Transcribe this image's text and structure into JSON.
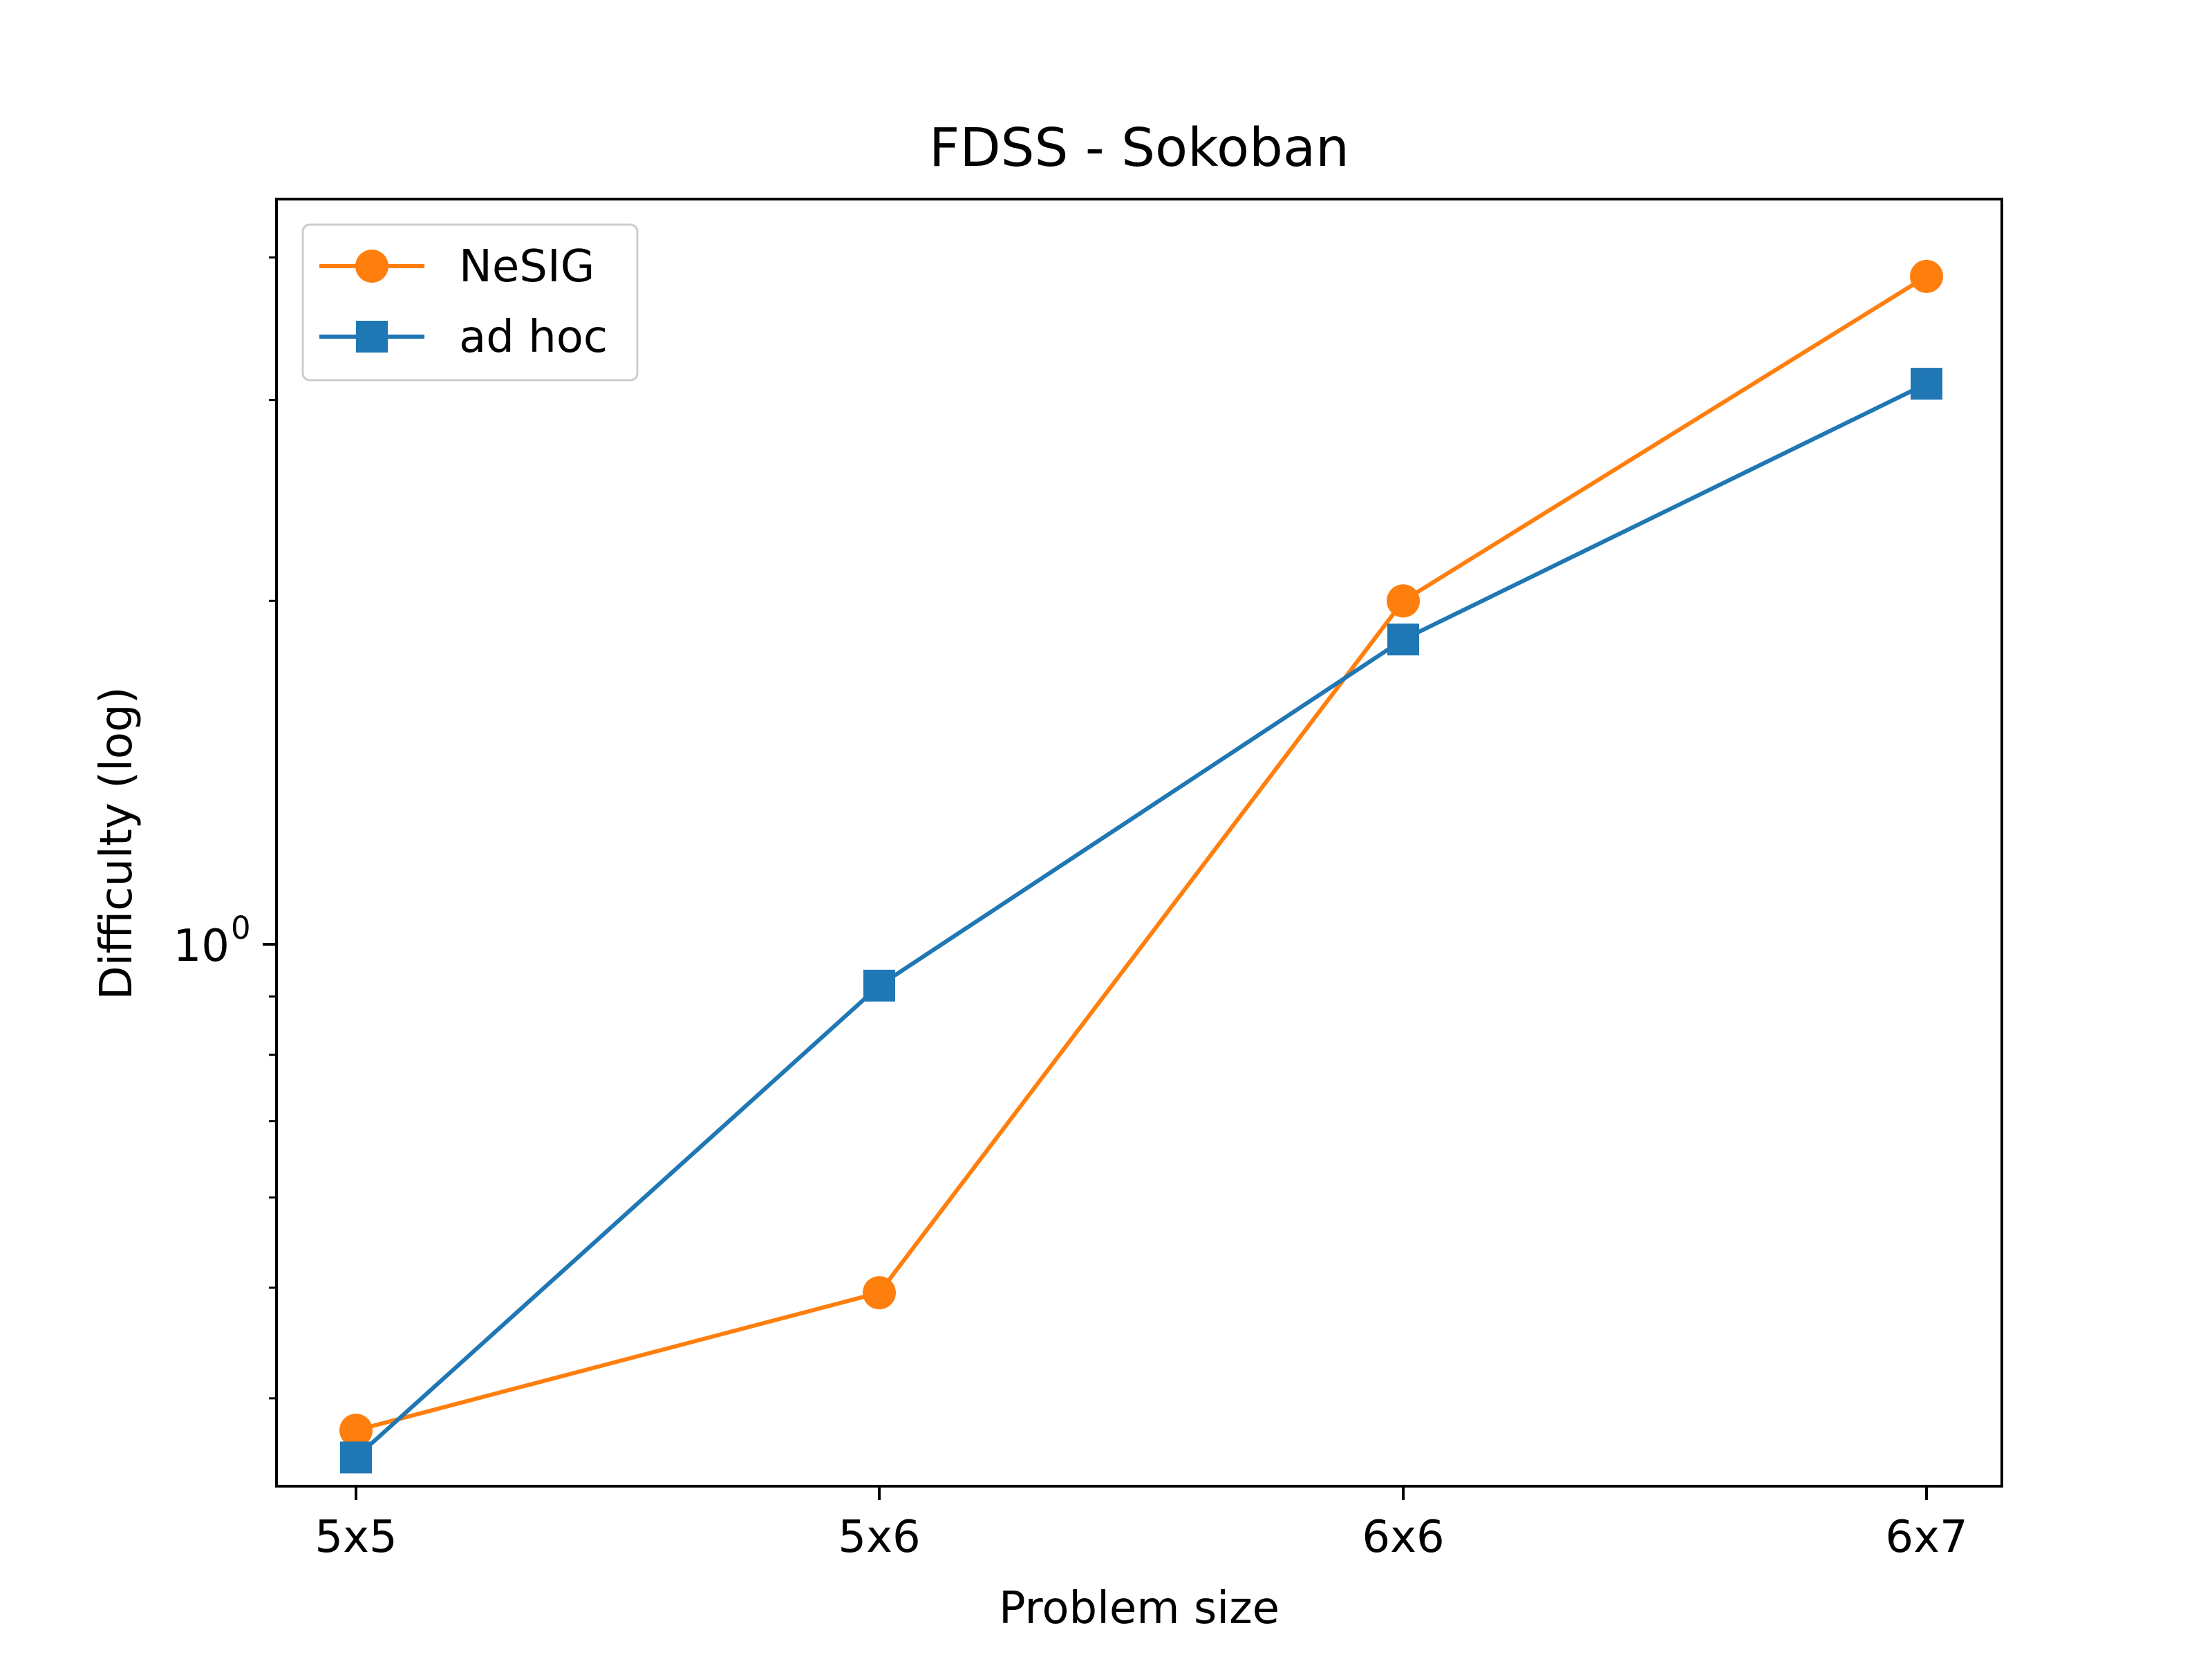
{
  "chart_data": {
    "type": "line",
    "title": "FDSS - Sokoban",
    "xlabel": "Problem size",
    "ylabel": "Difficulty (log)",
    "categories": [
      "5x5",
      "5x6",
      "6x6",
      "6x7"
    ],
    "y_scale": "log",
    "ylim": [
      0.335,
      4.5
    ],
    "y_tick_label": {
      "base": "10",
      "exponent": "0",
      "value": 1.0
    },
    "grid": false,
    "legend_position": "top-left",
    "series": [
      {
        "name": "NeSIG",
        "values": [
          0.375,
          0.495,
          2.0,
          3.85
        ],
        "color": "#ff7f0e",
        "marker": "circle"
      },
      {
        "name": "ad hoc",
        "values": [
          0.355,
          0.92,
          1.85,
          3.1
        ],
        "color": "#1f77b4",
        "marker": "square"
      }
    ]
  }
}
